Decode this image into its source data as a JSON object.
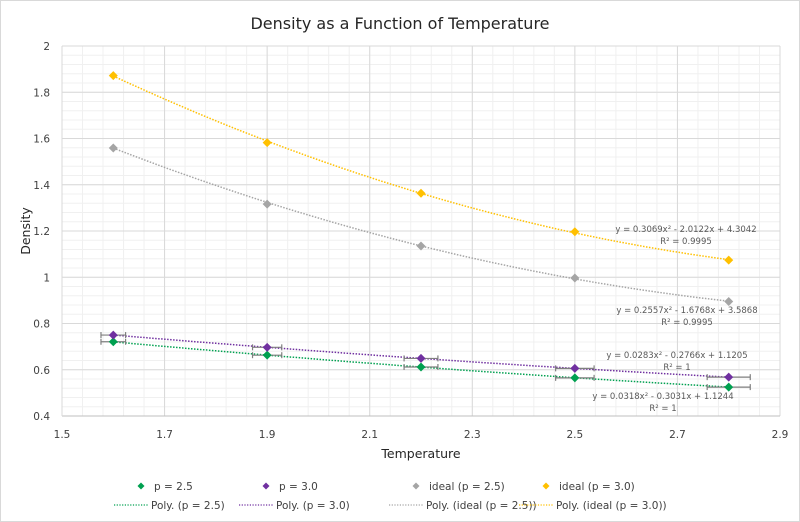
{
  "chart_data": {
    "type": "scatter",
    "title": "Density as a Function of Temperature",
    "xlabel": "Temperature",
    "ylabel": "Density",
    "xlim": [
      1.5,
      2.9
    ],
    "ylim": [
      0.4,
      2.0
    ],
    "xticks": [
      1.5,
      1.7,
      1.9,
      2.1,
      2.3,
      2.5,
      2.7,
      2.9
    ],
    "xtick_labels": [
      "1.5",
      "1.7",
      "1.9",
      "2.1",
      "2.3",
      "2.5",
      "2.7",
      "2.9"
    ],
    "yticks": [
      0.4,
      0.6,
      0.8,
      1.0,
      1.2,
      1.4,
      1.6,
      1.8,
      2.0
    ],
    "ytick_labels": [
      "0.4",
      "0.6",
      "0.8",
      "1",
      "1.2",
      "1.4",
      "1.6",
      "1.8",
      "2"
    ],
    "grid": true,
    "minor_grid": true,
    "legend_position": "bottom",
    "x": [
      1.6,
      1.9,
      2.2,
      2.5,
      2.8
    ],
    "series": [
      {
        "name": "p = 2.5",
        "color": "#00a050",
        "values": [
          0.721,
          0.663,
          0.612,
          0.565,
          0.525
        ],
        "x_error_percent": 1.5,
        "trendline": {
          "name": "Poly. (p = 2.5)",
          "type": "poly2",
          "coef": [
            0.0318,
            -0.3031,
            1.1244
          ],
          "equation": "y = 0.0318x² - 0.3031x + 1.1244",
          "r2": "R² = 1"
        }
      },
      {
        "name": "p = 3.0",
        "color": "#7030a0",
        "values": [
          0.75,
          0.697,
          0.649,
          0.606,
          0.568
        ],
        "x_error_percent": 1.5,
        "trendline": {
          "name": "Poly. (p = 3.0)",
          "type": "poly2",
          "coef": [
            0.0283,
            -0.2766,
            1.1205
          ],
          "equation": "y = 0.0283x² - 0.2766x + 1.1205",
          "r2": "R² = 1"
        }
      },
      {
        "name": "ideal (p = 2.5)",
        "color": "#a5a5a5",
        "values": [
          1.559,
          1.316,
          1.135,
          0.997,
          0.895
        ],
        "x_error_percent": 0,
        "trendline": {
          "name": "Poly. (ideal (p = 2.5))",
          "type": "poly2",
          "coef": [
            0.2557,
            -1.6768,
            3.5868
          ],
          "equation": "y = 0.2557x² - 1.6768x + 3.5868",
          "r2": "R² = 0.9995"
        }
      },
      {
        "name": "ideal (p = 3.0)",
        "color": "#ffc000",
        "values": [
          1.872,
          1.582,
          1.363,
          1.197,
          1.074
        ],
        "x_error_percent": 0,
        "trendline": {
          "name": "Poly. (ideal (p = 3.0))",
          "type": "poly2",
          "coef": [
            0.3069,
            -2.0122,
            4.3042
          ],
          "equation": "y = 0.3069x² - 2.0122x + 4.3042",
          "r2": "R² = 0.9995"
        }
      }
    ],
    "annotations": [
      {
        "series": "ideal (p = 3.0)",
        "text": [
          "y = 0.3069x² - 2.0122x + 4.3042",
          "R² = 0.9995"
        ]
      },
      {
        "series": "ideal (p = 2.5)",
        "text": [
          "y = 0.2557x² - 1.6768x + 3.5868",
          "R² = 0.9995"
        ]
      },
      {
        "series": "p = 3.0",
        "text": [
          "y = 0.0283x² - 0.2766x + 1.1205",
          "R² = 1"
        ]
      },
      {
        "series": "p = 2.5",
        "text": [
          "y = 0.0318x² - 0.3031x + 1.1244",
          "R² = 1"
        ]
      }
    ]
  }
}
